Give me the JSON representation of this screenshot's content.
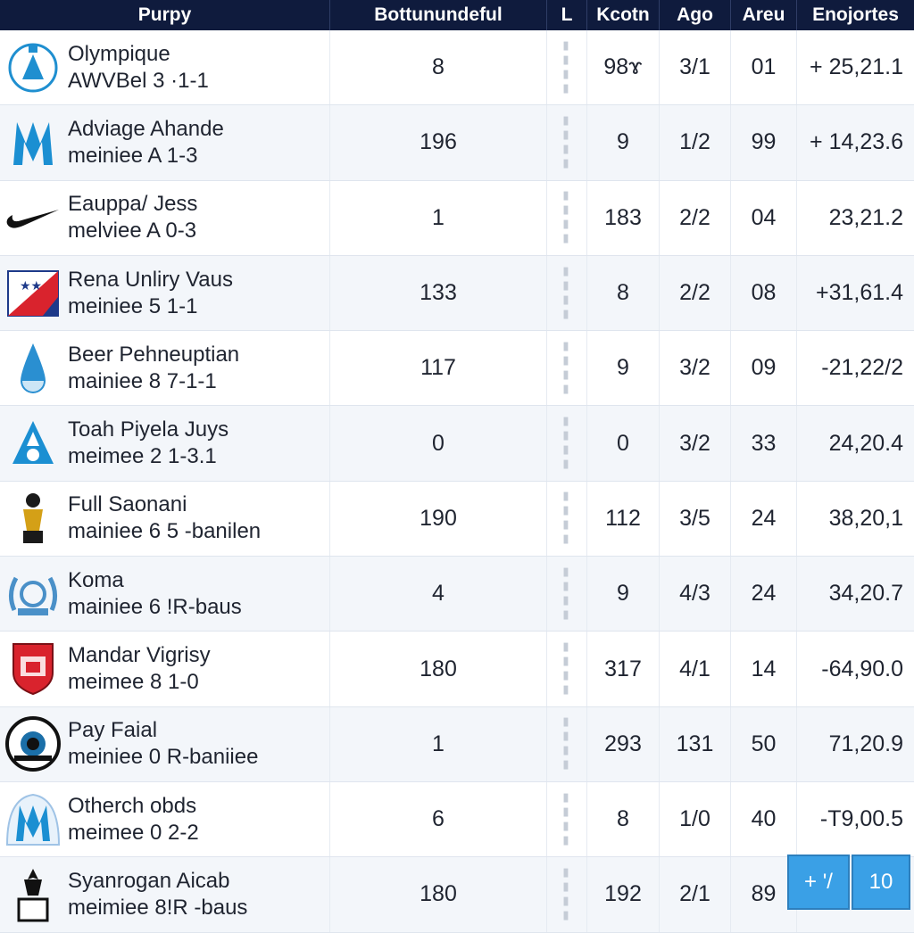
{
  "header": {
    "col1": "Purpy",
    "col2": "Bottunundeful",
    "col3": "L",
    "col4": "Kcotn",
    "col5": "Ago",
    "col6": "Areu",
    "col7": "Enojortes"
  },
  "rows": [
    {
      "name": "Olympique",
      "sub": "AWVBel  3  ·1-1",
      "logo": "crest-circle-blue-icon",
      "v1": "8",
      "v2": "98ɤ",
      "v3": "3/1",
      "v4": "01",
      "v5": "+ 25,21.1"
    },
    {
      "name": "Adviage Ahande",
      "sub": "meiniee  A  1-3",
      "logo": "crest-blue-m-icon",
      "v1": "196",
      "v2": "9",
      "v3": "1/2",
      "v4": "99",
      "v5": "+ 14,23.6"
    },
    {
      "name": "Eauppa/ Jess",
      "sub": "melviee  A  0-3",
      "logo": "swoosh-icon",
      "v1": "1",
      "v2": "183",
      "v3": "2/2",
      "v4": "04",
      "v5": "23,21.2"
    },
    {
      "name": "Rena Unliry Vaus",
      "sub": "meiniee  5  1-1",
      "logo": "flag-stars-icon",
      "v1": "133",
      "v2": "8",
      "v3": "2/2",
      "v4": "08",
      "v5": "+31,61.4"
    },
    {
      "name": "Beer Pehneuptian",
      "sub": "mainiee  8  7-1-1",
      "logo": "drop-icon",
      "v1": "117",
      "v2": "9",
      "v3": "3/2",
      "v4": "09",
      "v5": "-21,22/2"
    },
    {
      "name": "Toah Piyela Juys",
      "sub": "meimee  2  1-3.1",
      "logo": "triangle-crest-icon",
      "v1": "0",
      "v2": "0",
      "v3": "3/2",
      "v4": "33",
      "v5": "24,20.4"
    },
    {
      "name": "Full Saonani",
      "sub": "mainiee  6  5 -banilen",
      "logo": "gold-figure-icon",
      "v1": "190",
      "v2": "112",
      "v3": "3/5",
      "v4": "24",
      "v5": "38,20,1"
    },
    {
      "name": "Koma",
      "sub": "mainiee  6 !R-baus",
      "logo": "laurel-crest-icon",
      "v1": "4",
      "v2": "9",
      "v3": "4/3",
      "v4": "24",
      "v5": "34,20.7"
    },
    {
      "name": "Mandar Vigrisy",
      "sub": "meimee  8  1-0",
      "logo": "red-shield-icon",
      "v1": "180",
      "v2": "317",
      "v3": "4/1",
      "v4": "14",
      "v5": "-64,90.0"
    },
    {
      "name": "Pay Faial",
      "sub": "meiniee  0  R-baniiee",
      "logo": "round-badge-icon",
      "v1": "1",
      "v2": "293",
      "v3": "131",
      "v4": "50",
      "v5": "71,20.9"
    },
    {
      "name": "Otherch obds",
      "sub": "meimee  0  2-2",
      "logo": "crest-blue-m-icon",
      "v1": "6",
      "v2": "8",
      "v3": "1/0",
      "v4": "40",
      "v5": "-T9,00.5"
    },
    {
      "name": "Syanrogan Aicab",
      "sub": "meimiee  8!R -baus",
      "logo": "trophy-badge-icon",
      "v1": "180",
      "v2": "192",
      "v3": "2/1",
      "v4": "89",
      "v5": ""
    }
  ],
  "action": {
    "left_label": "+ '/",
    "right_label": "10"
  },
  "colors": {
    "header_bg": "#0f1b3d",
    "accent": "#3aa0e6"
  }
}
